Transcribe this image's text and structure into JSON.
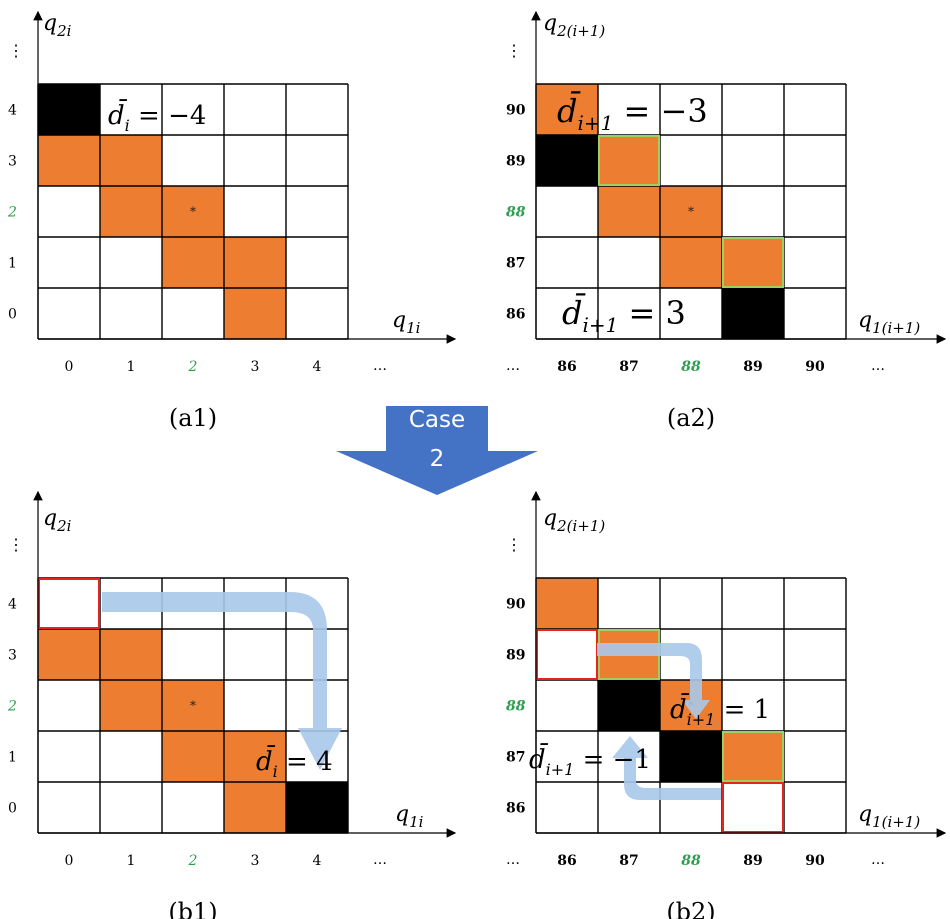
{
  "colors": {
    "orange": "#ed7d31",
    "black": "#000000",
    "red": "#e8231f",
    "green": "#2e9e4f",
    "blue": "#4472c4",
    "arrow": "#a9c8ea"
  },
  "panels": [
    {
      "id": "a1",
      "caption": "(a1)",
      "y_axis_label": "q2i",
      "x_axis_label": "q1i",
      "y_ticks": [
        "4",
        "3",
        "2",
        "1",
        "0"
      ],
      "x_ticks": [
        "0",
        "1",
        "2",
        "3",
        "4"
      ],
      "highlight_tick": "2",
      "ellipsis_v": "⋮",
      "ellipsis_h": "…",
      "cells": [
        {
          "col": 0,
          "row": 4,
          "fill": "black"
        },
        {
          "col": 0,
          "row": 3,
          "fill": "orange"
        },
        {
          "col": 1,
          "row": 3,
          "fill": "orange"
        },
        {
          "col": 1,
          "row": 2,
          "fill": "orange"
        },
        {
          "col": 2,
          "row": 2,
          "fill": "orange"
        },
        {
          "col": 2,
          "row": 1,
          "fill": "orange"
        },
        {
          "col": 3,
          "row": 1,
          "fill": "orange"
        },
        {
          "col": 3,
          "row": 0,
          "fill": "orange"
        }
      ],
      "labels": [
        {
          "text": "d̄i = −4",
          "base": "d̄",
          "sub": "i",
          "rest": " = −4"
        }
      ]
    },
    {
      "id": "a2",
      "caption": "(a2)",
      "y_axis_label": "q2(i+1)",
      "x_axis_label": "q1(i+1)",
      "y_ticks": [
        "90",
        "89",
        "88",
        "87",
        "86"
      ],
      "x_ticks": [
        "86",
        "87",
        "88",
        "89",
        "90"
      ],
      "highlight_tick": "88",
      "ellipsis_v": "⋮",
      "ellipsis_h": "…",
      "ellipsis_x_start": "…",
      "cells": [
        {
          "col": 0,
          "row": 4,
          "fill": "orange"
        },
        {
          "col": 0,
          "row": 3,
          "fill": "black"
        },
        {
          "col": 1,
          "row": 3,
          "fill": "orange",
          "stroke": "green"
        },
        {
          "col": 1,
          "row": 2,
          "fill": "orange"
        },
        {
          "col": 2,
          "row": 2,
          "fill": "orange"
        },
        {
          "col": 2,
          "row": 1,
          "fill": "orange"
        },
        {
          "col": 3,
          "row": 1,
          "fill": "orange",
          "stroke": "green"
        },
        {
          "col": 3,
          "row": 0,
          "fill": "black"
        }
      ],
      "labels": [
        {
          "text": "d̄i+1 = −3",
          "base": "d̄",
          "sub": "i+1",
          "rest": " = −3"
        },
        {
          "text": "d̄i+1 = 3",
          "base": "d̄",
          "sub": "i+1",
          "rest": " = 3"
        }
      ]
    },
    {
      "id": "b1",
      "caption": "(b1)",
      "y_axis_label": "q2i",
      "x_axis_label": "q1i",
      "y_ticks": [
        "4",
        "3",
        "2",
        "1",
        "0"
      ],
      "x_ticks": [
        "0",
        "1",
        "2",
        "3",
        "4"
      ],
      "highlight_tick": "2",
      "ellipsis_v": "⋮",
      "ellipsis_h": "…",
      "cells": [
        {
          "col": 0,
          "row": 4,
          "fill": "white",
          "stroke": "red"
        },
        {
          "col": 0,
          "row": 3,
          "fill": "orange"
        },
        {
          "col": 1,
          "row": 3,
          "fill": "orange"
        },
        {
          "col": 1,
          "row": 2,
          "fill": "orange"
        },
        {
          "col": 2,
          "row": 2,
          "fill": "orange"
        },
        {
          "col": 2,
          "row": 1,
          "fill": "orange"
        },
        {
          "col": 3,
          "row": 1,
          "fill": "orange"
        },
        {
          "col": 3,
          "row": 0,
          "fill": "orange"
        },
        {
          "col": 4,
          "row": 0,
          "fill": "black"
        }
      ],
      "labels": [
        {
          "text": "d̄i = 4",
          "base": "d̄",
          "sub": "i",
          "rest": " = 4"
        }
      ]
    },
    {
      "id": "b2",
      "caption": "(b2)",
      "y_axis_label": "q2(i+1)",
      "x_axis_label": "q1(i+1)",
      "y_ticks": [
        "90",
        "89",
        "88",
        "87",
        "86"
      ],
      "x_ticks": [
        "86",
        "87",
        "88",
        "89",
        "90"
      ],
      "highlight_tick": "88",
      "ellipsis_v": "⋮",
      "ellipsis_h": "…",
      "ellipsis_x_start": "…",
      "cells": [
        {
          "col": 0,
          "row": 4,
          "fill": "orange"
        },
        {
          "col": 0,
          "row": 3,
          "fill": "white",
          "stroke": "red"
        },
        {
          "col": 1,
          "row": 3,
          "fill": "orange",
          "stroke": "green"
        },
        {
          "col": 1,
          "row": 2,
          "fill": "black"
        },
        {
          "col": 2,
          "row": 2,
          "fill": "orange"
        },
        {
          "col": 2,
          "row": 1,
          "fill": "black"
        },
        {
          "col": 3,
          "row": 1,
          "fill": "orange",
          "stroke": "green"
        },
        {
          "col": 3,
          "row": 0,
          "fill": "white",
          "stroke": "red"
        }
      ],
      "labels": [
        {
          "text": "d̄i+1 = 1",
          "base": "d̄",
          "sub": "i+1",
          "rest": " = 1"
        },
        {
          "text": "d̄i+1 = −1",
          "base": "d̄",
          "sub": "i+1",
          "rest": " = −1"
        }
      ]
    }
  ],
  "case_arrow": {
    "label_line1": "Case",
    "label_line2": "2"
  }
}
